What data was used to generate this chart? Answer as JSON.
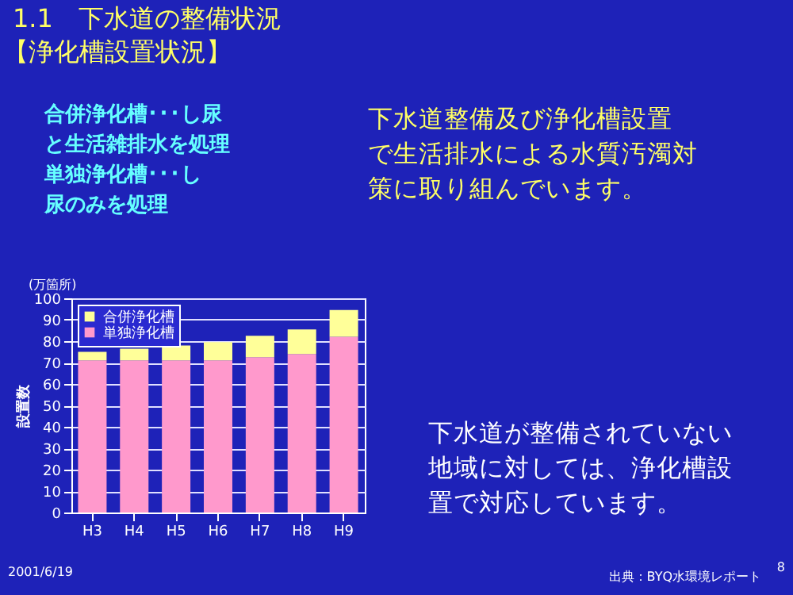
{
  "chart_data": {
    "type": "bar",
    "stacked": true,
    "title": "1.1　下水道の整備状況",
    "subtitle": "【浄化槽設置状況】",
    "ylabel": "設置数",
    "categories": [
      "H3",
      "H4",
      "H5",
      "H6",
      "H7",
      "H8",
      "H9"
    ],
    "series": [
      {
        "name": "単独浄化槽",
        "color": "#ff99cc",
        "values": [
          71,
          71,
          71,
          71,
          72.5,
          74,
          82
        ]
      },
      {
        "name": "合併浄化槽",
        "color": "#ffff99",
        "values": [
          4,
          5.5,
          7,
          8.5,
          10,
          11.5,
          12.5
        ]
      }
    ],
    "ylim": [
      0,
      100
    ],
    "yticks": [
      0,
      10,
      20,
      30,
      40,
      50,
      60,
      70,
      80,
      90,
      100
    ],
    "grid": "y",
    "legend": "top left",
    "annotations": [
      "(万箇所)",
      "合併浄化槽･･･し尿と生活雑排水を処理",
      "単独浄化槽･･･し尿のみを処理",
      "下水道整備及び浄化槽設置で生活排水による水質汚濁対策に取り組んでいます。",
      "下水道が整備されていない地域に対しては、浄化槽設置で対応しています。",
      "2001/6/19",
      "出典：BYQ水環境レポート",
      "8"
    ]
  }
}
